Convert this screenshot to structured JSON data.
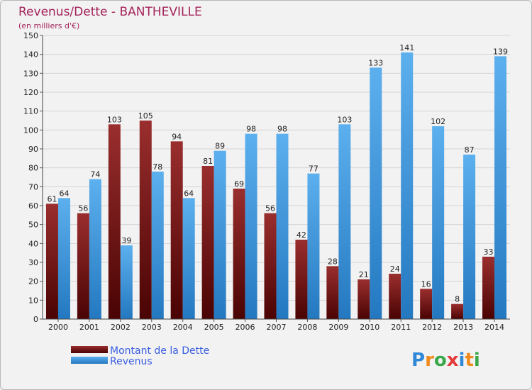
{
  "chart_data": {
    "type": "bar",
    "title": "Revenus/Dette - BANTHEVILLE",
    "subtitle": "(en milliers d'€)",
    "categories": [
      "2000",
      "2001",
      "2002",
      "2003",
      "2004",
      "2005",
      "2006",
      "2007",
      "2008",
      "2009",
      "2010",
      "2011",
      "2012",
      "2013",
      "2014"
    ],
    "series": [
      {
        "name": "Montant de la Dette",
        "color": "#7a1515",
        "values": [
          61,
          56,
          103,
          105,
          94,
          81,
          69,
          56,
          42,
          28,
          21,
          24,
          16,
          8,
          33
        ]
      },
      {
        "name": "Revenus",
        "color": "#3f9be0",
        "values": [
          64,
          74,
          39,
          78,
          64,
          89,
          98,
          98,
          77,
          103,
          133,
          141,
          102,
          87,
          139
        ]
      }
    ],
    "ylim": [
      0,
      150
    ],
    "yticks": [
      0,
      10,
      20,
      30,
      40,
      50,
      60,
      70,
      80,
      90,
      100,
      110,
      120,
      130,
      140,
      150
    ],
    "grid": true,
    "legend_position": "bottom-left"
  },
  "logo": {
    "text": "Proxiti"
  }
}
